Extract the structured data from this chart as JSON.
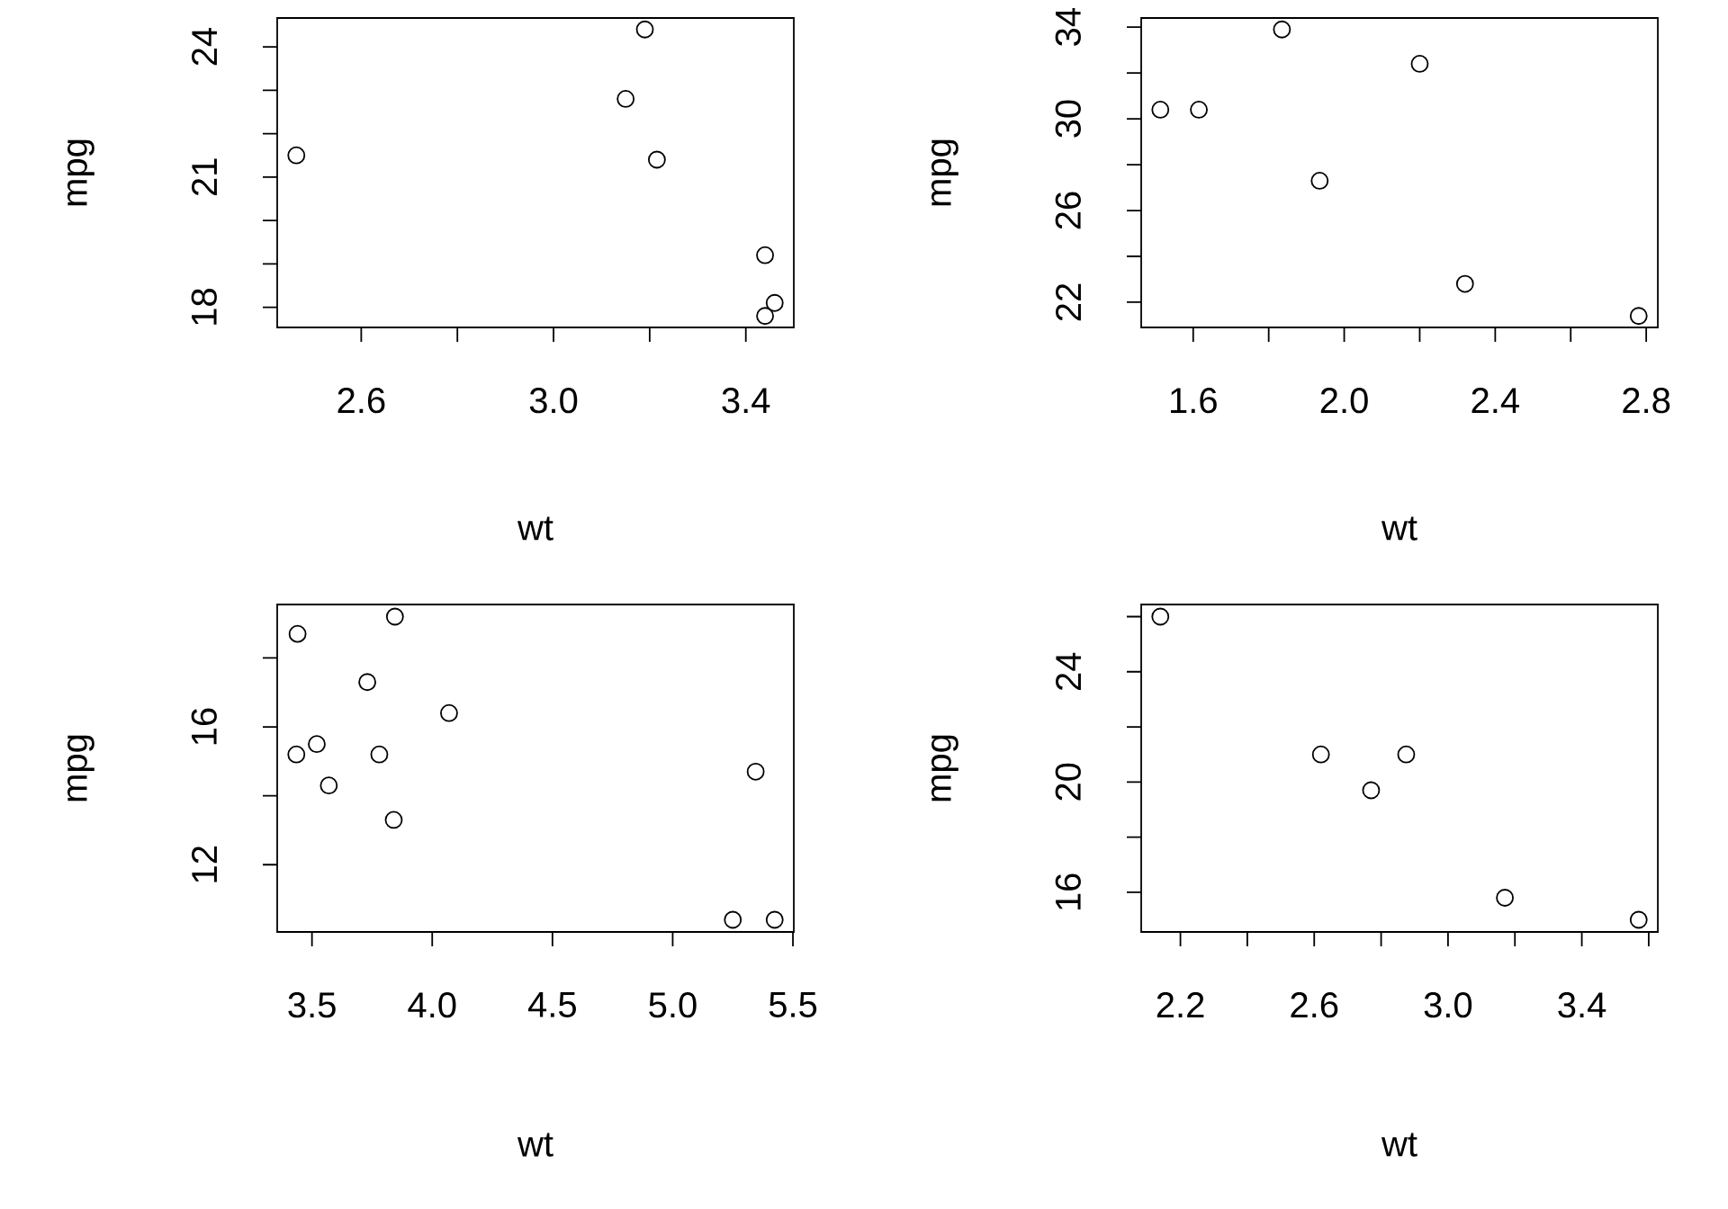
{
  "chart_data": [
    {
      "type": "scatter",
      "xlabel": "wt",
      "ylabel": "mpg",
      "marker": "circle",
      "color": "#000000",
      "x": [
        2.465,
        3.15,
        3.19,
        3.215,
        3.44,
        3.44,
        3.46
      ],
      "values": [
        21.5,
        22.8,
        24.4,
        21.4,
        19.2,
        17.8,
        18.1
      ],
      "xlim": [
        2.4252,
        3.4998
      ],
      "ylim": [
        17.536,
        24.664
      ],
      "xticks": [
        2.6,
        {
          "value": 2.8,
          "label": null
        },
        {
          "value": 3,
          "label": "3.0"
        },
        {
          "value": 3.2,
          "label": null
        },
        3.4
      ],
      "yticks": [
        18,
        {
          "value": 19,
          "label": null
        },
        {
          "value": 20,
          "label": null
        },
        21,
        {
          "value": 22,
          "label": null
        },
        {
          "value": 23,
          "label": null
        },
        24
      ]
    },
    {
      "type": "scatter",
      "xlabel": "wt",
      "ylabel": "mpg",
      "marker": "circle",
      "color": "#000000",
      "x": [
        1.513,
        1.615,
        1.835,
        1.935,
        2.2,
        2.32,
        2.78
      ],
      "values": [
        30.4,
        30.4,
        33.9,
        27.3,
        32.4,
        22.8,
        21.4
      ],
      "xlim": [
        1.4623,
        2.8307
      ],
      "ylim": [
        20.9,
        34.4
      ],
      "xticks": [
        1.6,
        {
          "value": 1.8,
          "label": null
        },
        {
          "value": 2,
          "label": "2.0"
        },
        {
          "value": 2.2,
          "label": null
        },
        2.4,
        {
          "value": 2.6,
          "label": null
        },
        2.8
      ],
      "yticks": [
        22,
        {
          "value": 24,
          "label": null
        },
        26,
        {
          "value": 28,
          "label": null
        },
        30,
        {
          "value": 32,
          "label": null
        },
        34
      ]
    },
    {
      "type": "scatter",
      "xlabel": "wt",
      "ylabel": "mpg",
      "marker": "circle",
      "color": "#000000",
      "x": [
        3.44,
        3.57,
        4.07,
        3.73,
        3.78,
        5.25,
        5.424,
        5.345,
        3.52,
        3.435,
        3.84,
        3.845
      ],
      "values": [
        18.7,
        14.3,
        16.4,
        17.3,
        15.2,
        10.4,
        10.4,
        14.7,
        15.5,
        15.2,
        13.3,
        19.2
      ],
      "xlim": [
        3.3554,
        5.5036
      ],
      "ylim": [
        10.048,
        19.552
      ],
      "xticks": [
        3.5,
        {
          "value": 4,
          "label": "4.0"
        },
        4.5,
        {
          "value": 5,
          "label": "5.0"
        },
        5.5
      ],
      "yticks": [
        12,
        {
          "value": 14,
          "label": null
        },
        16,
        {
          "value": 18,
          "label": null
        }
      ]
    },
    {
      "type": "scatter",
      "xlabel": "wt",
      "ylabel": "mpg",
      "marker": "circle",
      "color": "#000000",
      "x": [
        2.62,
        2.875,
        2.14,
        3.17,
        2.77,
        3.57
      ],
      "values": [
        21,
        21,
        26,
        15.8,
        19.7,
        15
      ],
      "xlim": [
        2.0828,
        3.6272
      ],
      "ylim": [
        14.56,
        26.44
      ],
      "xticks": [
        2.2,
        {
          "value": 2.4,
          "label": null
        },
        2.6,
        {
          "value": 2.8,
          "label": null
        },
        {
          "value": 3,
          "label": "3.0"
        },
        {
          "value": 3.2,
          "label": null
        },
        3.4,
        {
          "value": 3.6,
          "label": null
        }
      ],
      "yticks": [
        16,
        {
          "value": 18,
          "label": null
        },
        20,
        {
          "value": 22,
          "label": null
        },
        24,
        {
          "value": 26,
          "label": null
        }
      ]
    }
  ]
}
